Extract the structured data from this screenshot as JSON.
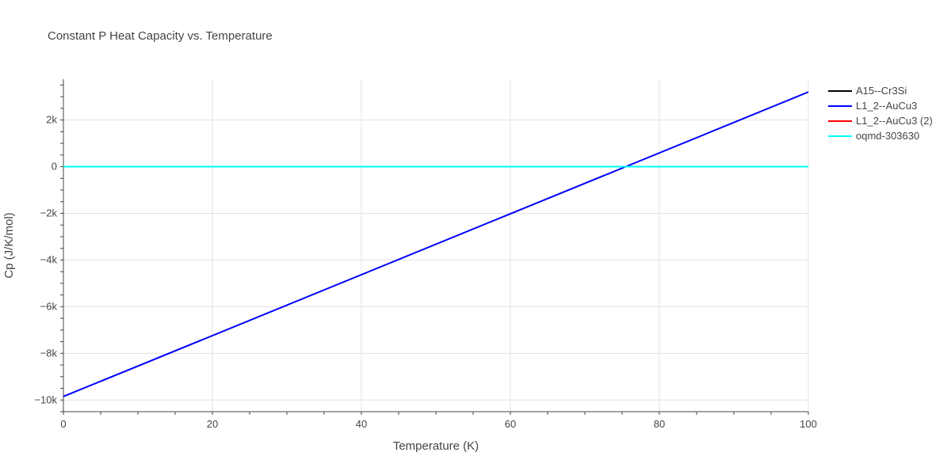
{
  "chart_data": {
    "type": "line",
    "title": "Constant P Heat Capacity vs. Temperature",
    "xlabel": "Temperature (K)",
    "ylabel": "Cp (J/K/mol)",
    "xlim": [
      0,
      100
    ],
    "ylim": [
      -10500,
      3750
    ],
    "x_ticks": [
      0,
      20,
      40,
      60,
      80,
      100
    ],
    "x_tick_labels": [
      "0",
      "20",
      "40",
      "60",
      "80",
      "100"
    ],
    "y_ticks": [
      -10000,
      -8000,
      -6000,
      -4000,
      -2000,
      0,
      2000
    ],
    "y_tick_labels": [
      "−10k",
      "−8k",
      "−6k",
      "−4k",
      "−2k",
      "0",
      "2k"
    ],
    "grid": true,
    "legend_position": "right",
    "series": [
      {
        "name": "A15--Cr3Si",
        "color": "#000000",
        "x": [
          0,
          100
        ],
        "y": [
          0,
          0
        ]
      },
      {
        "name": "L1_2--AuCu3",
        "color": "#0000ff",
        "x": [
          0,
          100
        ],
        "y": [
          -9850,
          3200
        ]
      },
      {
        "name": "L1_2--AuCu3 (2)",
        "color": "#ff0000",
        "x": [
          0,
          100
        ],
        "y": [
          0,
          0
        ]
      },
      {
        "name": "oqmd-303630",
        "color": "#00ffff",
        "x": [
          0,
          100
        ],
        "y": [
          0,
          0
        ]
      }
    ]
  }
}
